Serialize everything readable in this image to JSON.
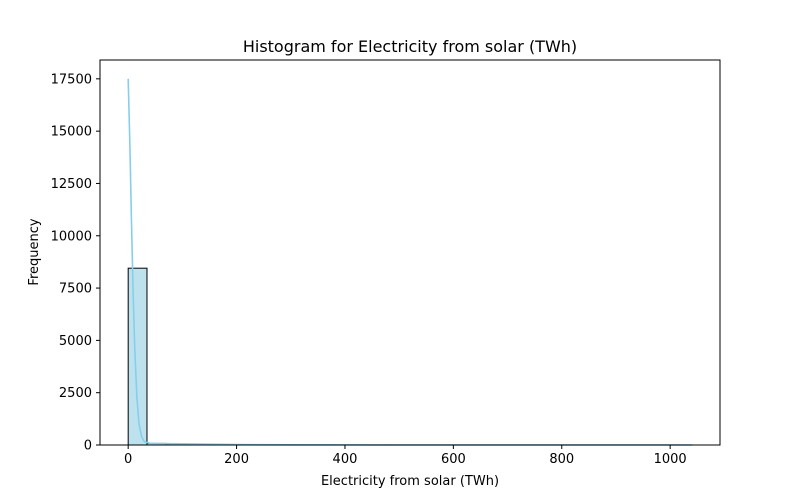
{
  "chart_data": {
    "type": "bar",
    "subtype": "histogram",
    "title": "Histogram for Electricity from solar (TWh)",
    "xlabel": "Electricity from solar (TWh)",
    "ylabel": "Frequency",
    "xlim": [
      -52,
      1092
    ],
    "ylim": [
      0,
      18400
    ],
    "xticks": [
      0,
      200,
      400,
      600,
      800,
      1000
    ],
    "xtick_labels": [
      "0",
      "200",
      "400",
      "600",
      "800",
      "1000"
    ],
    "yticks": [
      0,
      2500,
      5000,
      7500,
      10000,
      12500,
      15000,
      17500
    ],
    "ytick_labels": [
      "0",
      "2500",
      "5000",
      "7500",
      "10000",
      "12500",
      "15000",
      "17500"
    ],
    "bins": {
      "start": 0,
      "width": 34.7,
      "counts": [
        8450,
        75,
        35,
        20,
        12,
        8,
        6,
        5,
        4,
        3,
        3,
        2,
        2,
        2,
        1,
        1,
        1,
        1,
        1,
        1,
        1,
        1,
        1,
        1,
        1,
        1,
        1,
        1,
        1,
        1
      ]
    },
    "kde": {
      "x": [
        0,
        3,
        6,
        9,
        12,
        16,
        20,
        25,
        30,
        40,
        60,
        100,
        200,
        300,
        400,
        500,
        600,
        700,
        800,
        900,
        1000,
        1041
      ],
      "y": [
        17500,
        14500,
        10800,
        7400,
        4700,
        2300,
        1000,
        380,
        150,
        80,
        70,
        55,
        20,
        10,
        6,
        4,
        3,
        2,
        2,
        1,
        1,
        0
      ]
    },
    "grid": false,
    "legend": "none",
    "colors": {
      "bar_fill": "#bde2ee",
      "bar_edge": "#000000",
      "kde_line": "#87ceeb"
    }
  }
}
